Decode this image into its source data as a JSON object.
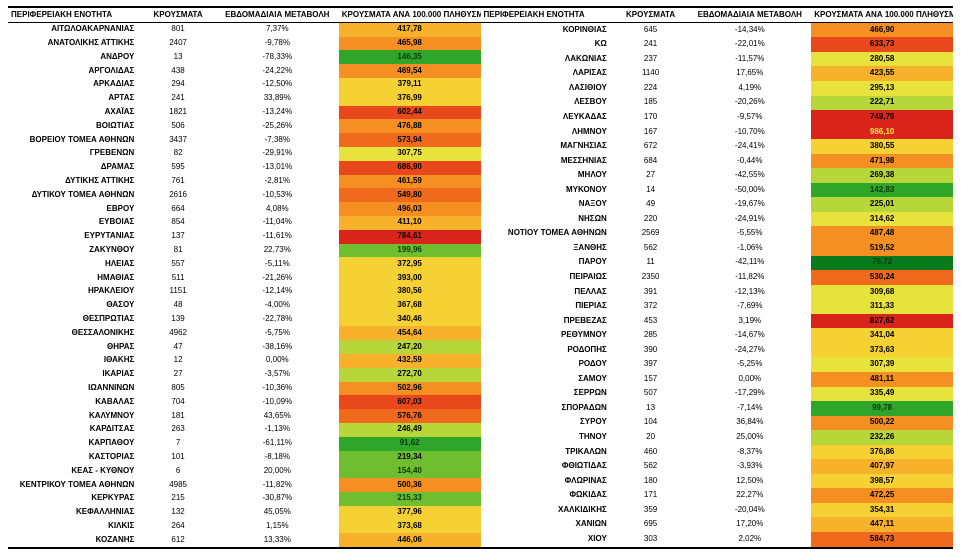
{
  "headers": {
    "region": "ΠΕΡΙΦΕΡΕΙΑΚΗ ΕΝΟΤΗΤΑ",
    "cases": "ΚΡΟΥΣΜΑΤΑ",
    "change": "ΕΒΔΟΜΑΔΙΑΙΑ ΜΕΤΑΒΟΛΗ",
    "rate": "ΚΡΟΥΣΜΑΤΑ ΑΝΑ 100.000 ΠΛΗΘΥΣΜΟΥ"
  },
  "heatmap": {
    "scale": [
      {
        "v": 80,
        "c": "#0a7a1e"
      },
      {
        "v": 150,
        "c": "#2fa52a"
      },
      {
        "v": 220,
        "c": "#6fbe2f"
      },
      {
        "v": 280,
        "c": "#b6d63a"
      },
      {
        "v": 340,
        "c": "#e8e23c"
      },
      {
        "v": 400,
        "c": "#f6d133"
      },
      {
        "v": 460,
        "c": "#f7b12a"
      },
      {
        "v": 520,
        "c": "#f58f22"
      },
      {
        "v": 600,
        "c": "#f06a1d"
      },
      {
        "v": 700,
        "c": "#e8481b"
      },
      {
        "v": 9999,
        "c": "#d8241a"
      }
    ],
    "text_dark": "#000000",
    "text_light": "#d8241a"
  },
  "left": [
    {
      "region": "ΑΙΤΩΛΟΑΚΑΡΝΑΝΙΑΣ",
      "cases": "801",
      "change": "7,37%",
      "rate": "417,78",
      "v": 417.78
    },
    {
      "region": "ΑΝΑΤΟΛΙΚΗΣ ΑΤΤΙΚΗΣ",
      "cases": "2407",
      "change": "-9,78%",
      "rate": "465,98",
      "v": 465.98
    },
    {
      "region": "ΑΝΔΡΟΥ",
      "cases": "13",
      "change": "-78,33%",
      "rate": "146,35",
      "v": 146.35,
      "dark": true
    },
    {
      "region": "ΑΡΓΟΛΙΔΑΣ",
      "cases": "438",
      "change": "-24,22%",
      "rate": "469,54",
      "v": 469.54
    },
    {
      "region": "ΑΡΚΑΔΙΑΣ",
      "cases": "294",
      "change": "-12,50%",
      "rate": "379,11",
      "v": 379.11
    },
    {
      "region": "ΑΡΤΑΣ",
      "cases": "241",
      "change": "33,89%",
      "rate": "376,99",
      "v": 376.99
    },
    {
      "region": "ΑΧΑΪΑΣ",
      "cases": "1821",
      "change": "-13,24%",
      "rate": "602,44",
      "v": 602.44
    },
    {
      "region": "ΒΟΙΩΤΙΑΣ",
      "cases": "506",
      "change": "-25,26%",
      "rate": "476,88",
      "v": 476.88
    },
    {
      "region": "ΒΟΡΕΙΟΥ ΤΟΜΕΑ ΑΘΗΝΩΝ",
      "cases": "3437",
      "change": "-7,38%",
      "rate": "573,94",
      "v": 573.94
    },
    {
      "region": "ΓΡΕΒΕΝΩΝ",
      "cases": "82",
      "change": "-29,91%",
      "rate": "307,75",
      "v": 307.75
    },
    {
      "region": "ΔΡΑΜΑΣ",
      "cases": "595",
      "change": "-13,01%",
      "rate": "686,90",
      "v": 686.9
    },
    {
      "region": "ΔΥΤΙΚΗΣ ΑΤΤΙΚΗΣ",
      "cases": "761",
      "change": "-2,81%",
      "rate": "461,59",
      "v": 461.59
    },
    {
      "region": "ΔΥΤΙΚΟΥ ΤΟΜΕΑ ΑΘΗΝΩΝ",
      "cases": "2616",
      "change": "-10,53%",
      "rate": "549,80",
      "v": 549.8
    },
    {
      "region": "ΕΒΡΟΥ",
      "cases": "664",
      "change": "4,08%",
      "rate": "496,03",
      "v": 496.03
    },
    {
      "region": "ΕΥΒΟΙΑΣ",
      "cases": "854",
      "change": "-11,04%",
      "rate": "411,10",
      "v": 411.1
    },
    {
      "region": "ΕΥΡΥΤΑΝΙΑΣ",
      "cases": "137",
      "change": "-11,61%",
      "rate": "784,61",
      "v": 784.61
    },
    {
      "region": "ΖΑΚΥΝΘΟΥ",
      "cases": "81",
      "change": "22,73%",
      "rate": "199,96",
      "v": 199.96,
      "dark": true
    },
    {
      "region": "ΗΛΕΙΑΣ",
      "cases": "557",
      "change": "-5,11%",
      "rate": "372,95",
      "v": 372.95
    },
    {
      "region": "ΗΜΑΘΙΑΣ",
      "cases": "511",
      "change": "-21,26%",
      "rate": "393,00",
      "v": 393.0
    },
    {
      "region": "ΗΡΑΚΛΕΙΟΥ",
      "cases": "1151",
      "change": "-12,14%",
      "rate": "380,56",
      "v": 380.56
    },
    {
      "region": "ΘΑΣΟΥ",
      "cases": "48",
      "change": "-4,00%",
      "rate": "367,68",
      "v": 367.68
    },
    {
      "region": "ΘΕΣΠΡΩΤΙΑΣ",
      "cases": "139",
      "change": "-22,78%",
      "rate": "340,46",
      "v": 340.46
    },
    {
      "region": "ΘΕΣΣΑΛΟΝΙΚΗΣ",
      "cases": "4962",
      "change": "-5,75%",
      "rate": "454,64",
      "v": 454.64
    },
    {
      "region": "ΘΗΡΑΣ",
      "cases": "47",
      "change": "-38,16%",
      "rate": "247,20",
      "v": 247.2
    },
    {
      "region": "ΙΘΑΚΗΣ",
      "cases": "12",
      "change": "0,00%",
      "rate": "432,59",
      "v": 432.59
    },
    {
      "region": "ΙΚΑΡΙΑΣ",
      "cases": "27",
      "change": "-3,57%",
      "rate": "272,70",
      "v": 272.7
    },
    {
      "region": "ΙΩΑΝΝΙΝΩΝ",
      "cases": "805",
      "change": "-10,36%",
      "rate": "502,96",
      "v": 502.96
    },
    {
      "region": "ΚΑΒΑΛΑΣ",
      "cases": "704",
      "change": "-10,09%",
      "rate": "607,03",
      "v": 607.03
    },
    {
      "region": "ΚΑΛΥΜΝΟΥ",
      "cases": "181",
      "change": "43,65%",
      "rate": "576,76",
      "v": 576.76
    },
    {
      "region": "ΚΑΡΔΙΤΣΑΣ",
      "cases": "263",
      "change": "-1,13%",
      "rate": "246,49",
      "v": 246.49
    },
    {
      "region": "ΚΑΡΠΑΘΟΥ",
      "cases": "7",
      "change": "-61,11%",
      "rate": "91,62",
      "v": 91.62,
      "dark": true
    },
    {
      "region": "ΚΑΣΤΟΡΙΑΣ",
      "cases": "101",
      "change": "-8,18%",
      "rate": "219,34",
      "v": 219.34
    },
    {
      "region": "ΚΕΑΣ - ΚΥΘΝΟΥ",
      "cases": "6",
      "change": "20,00%",
      "rate": "154,40",
      "v": 154.4,
      "dark": true
    },
    {
      "region": "ΚΕΝΤΡΙΚΟΥ ΤΟΜΕΑ ΑΘΗΝΩΝ",
      "cases": "4985",
      "change": "-11,82%",
      "rate": "500,36",
      "v": 500.36
    },
    {
      "region": "ΚΕΡΚΥΡΑΣ",
      "cases": "215",
      "change": "-30,87%",
      "rate": "215,33",
      "v": 215.33,
      "dark": true
    },
    {
      "region": "ΚΕΦΑΛΛΗΝΙΑΣ",
      "cases": "132",
      "change": "45,05%",
      "rate": "377,96",
      "v": 377.96
    },
    {
      "region": "ΚΙΛΚΙΣ",
      "cases": "264",
      "change": "1,15%",
      "rate": "373,68",
      "v": 373.68
    },
    {
      "region": "ΚΟΖΑΝΗΣ",
      "cases": "612",
      "change": "13,33%",
      "rate": "446,06",
      "v": 446.06
    }
  ],
  "right": [
    {
      "region": "ΚΟΡΙΝΘΙΑΣ",
      "cases": "645",
      "change": "-14,34%",
      "rate": "466,90",
      "v": 466.9
    },
    {
      "region": "ΚΩ",
      "cases": "241",
      "change": "-22,01%",
      "rate": "633,73",
      "v": 633.73
    },
    {
      "region": "ΛΑΚΩΝΙΑΣ",
      "cases": "237",
      "change": "-11,57%",
      "rate": "280,58",
      "v": 280.58
    },
    {
      "region": "ΛΑΡΙΣΑΣ",
      "cases": "1140",
      "change": "17,65%",
      "rate": "423,55",
      "v": 423.55
    },
    {
      "region": "ΛΑΣΙΘΙΟΥ",
      "cases": "224",
      "change": "4,19%",
      "rate": "295,13",
      "v": 295.13
    },
    {
      "region": "ΛΕΣΒΟΥ",
      "cases": "185",
      "change": "-20,26%",
      "rate": "222,71",
      "v": 222.71
    },
    {
      "region": "ΛΕΥΚΑΔΑΣ",
      "cases": "170",
      "change": "-9,57%",
      "rate": "749,79",
      "v": 749.79
    },
    {
      "region": "ΛΗΜΝΟΥ",
      "cases": "167",
      "change": "-10,70%",
      "rate": "986,10",
      "v": 986.1,
      "flash": true
    },
    {
      "region": "ΜΑΓΝΗΣΙΑΣ",
      "cases": "672",
      "change": "-24,41%",
      "rate": "380,55",
      "v": 380.55
    },
    {
      "region": "ΜΕΣΣΗΝΙΑΣ",
      "cases": "684",
      "change": "-0,44%",
      "rate": "471,98",
      "v": 471.98
    },
    {
      "region": "ΜΗΛΟΥ",
      "cases": "27",
      "change": "-42,55%",
      "rate": "269,38",
      "v": 269.38
    },
    {
      "region": "ΜΥΚΟΝΟΥ",
      "cases": "14",
      "change": "-50,00%",
      "rate": "142,83",
      "v": 142.83,
      "dark": true
    },
    {
      "region": "ΝΑΞΟΥ",
      "cases": "49",
      "change": "-19,67%",
      "rate": "225,01",
      "v": 225.01
    },
    {
      "region": "ΝΗΣΩΝ",
      "cases": "220",
      "change": "-24,91%",
      "rate": "314,62",
      "v": 314.62
    },
    {
      "region": "ΝΟΤΙΟΥ ΤΟΜΕΑ ΑΘΗΝΩΝ",
      "cases": "2569",
      "change": "-5,55%",
      "rate": "487,48",
      "v": 487.48
    },
    {
      "region": "ΞΑΝΘΗΣ",
      "cases": "562",
      "change": "-1,06%",
      "rate": "519,52",
      "v": 519.52
    },
    {
      "region": "ΠΑΡΟΥ",
      "cases": "11",
      "change": "-42,11%",
      "rate": "76,72",
      "v": 76.72,
      "dark": true
    },
    {
      "region": "ΠΕΙΡΑΙΩΣ",
      "cases": "2350",
      "change": "-11,82%",
      "rate": "530,24",
      "v": 530.24
    },
    {
      "region": "ΠΕΛΛΑΣ",
      "cases": "391",
      "change": "-12,13%",
      "rate": "309,68",
      "v": 309.68
    },
    {
      "region": "ΠΙΕΡΙΑΣ",
      "cases": "372",
      "change": "-7,69%",
      "rate": "311,33",
      "v": 311.33
    },
    {
      "region": "ΠΡΕΒΕΖΑΣ",
      "cases": "453",
      "change": "3,19%",
      "rate": "827,62",
      "v": 827.62
    },
    {
      "region": "ΡΕΘΥΜΝΟΥ",
      "cases": "285",
      "change": "-14,67%",
      "rate": "341,04",
      "v": 341.04
    },
    {
      "region": "ΡΟΔΟΠΗΣ",
      "cases": "390",
      "change": "-24,27%",
      "rate": "373,63",
      "v": 373.63
    },
    {
      "region": "ΡΟΔΟΥ",
      "cases": "397",
      "change": "-5,25%",
      "rate": "307,39",
      "v": 307.39
    },
    {
      "region": "ΣΑΜΟΥ",
      "cases": "157",
      "change": "0,00%",
      "rate": "481,11",
      "v": 481.11
    },
    {
      "region": "ΣΕΡΡΩΝ",
      "cases": "507",
      "change": "-17,29%",
      "rate": "335,49",
      "v": 335.49
    },
    {
      "region": "ΣΠΟΡΑΔΩΝ",
      "cases": "13",
      "change": "-7,14%",
      "rate": "99,78",
      "v": 99.78,
      "dark": true
    },
    {
      "region": "ΣΥΡΟΥ",
      "cases": "104",
      "change": "36,84%",
      "rate": "500,22",
      "v": 500.22
    },
    {
      "region": "ΤΗΝΟΥ",
      "cases": "20",
      "change": "25,00%",
      "rate": "232,26",
      "v": 232.26
    },
    {
      "region": "ΤΡΙΚΑΛΩΝ",
      "cases": "460",
      "change": "-8,37%",
      "rate": "376,86",
      "v": 376.86
    },
    {
      "region": "ΦΘΙΩΤΙΔΑΣ",
      "cases": "562",
      "change": "-3,93%",
      "rate": "407,97",
      "v": 407.97
    },
    {
      "region": "ΦΛΩΡΙΝΑΣ",
      "cases": "180",
      "change": "12,50%",
      "rate": "398,57",
      "v": 398.57
    },
    {
      "region": "ΦΩΚΙΔΑΣ",
      "cases": "171",
      "change": "22,27%",
      "rate": "472,25",
      "v": 472.25
    },
    {
      "region": "ΧΑΛΚΙΔΙΚΗΣ",
      "cases": "359",
      "change": "-20,04%",
      "rate": "354,31",
      "v": 354.31
    },
    {
      "region": "ΧΑΝΙΩΝ",
      "cases": "695",
      "change": "17,20%",
      "rate": "447,11",
      "v": 447.11
    },
    {
      "region": "ΧΙΟΥ",
      "cases": "303",
      "change": "2,02%",
      "rate": "584,73",
      "v": 584.73
    }
  ]
}
